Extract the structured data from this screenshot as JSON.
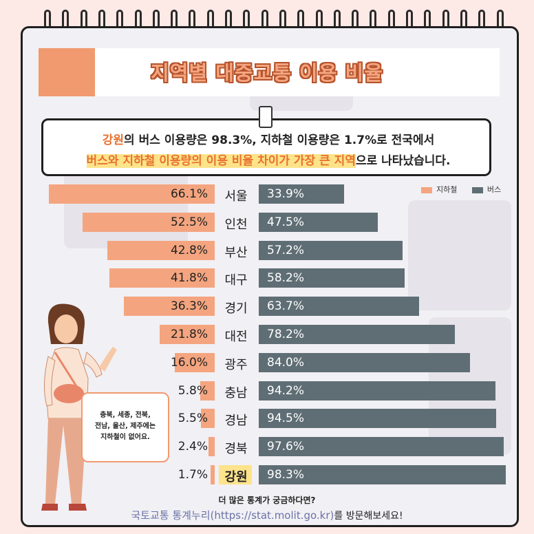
{
  "title": "지역별 대중교통 이용 비율",
  "summary": {
    "line1": {
      "highlight": "강원",
      "rest": "의 버스 이용량은 98.3%, 지하철 이용량은 1.7%로 전국에서"
    },
    "line2": {
      "highlight": "버스와 지하철 이용량의 이용 비율 차이가 가장 큰 지역",
      "rest": "으로 나타났습니다."
    }
  },
  "legend": {
    "subway": "지하철",
    "bus": "버스"
  },
  "colors": {
    "subway": "#f4a57f",
    "bus": "#5f6e75",
    "accent": "#e8712f",
    "highlight": "#fde38a"
  },
  "note": {
    "line1": "충북, 세종, 전북,",
    "line2": "전남, 울산, 제주에는",
    "line3": "지하철이 없어요."
  },
  "footer": {
    "line1": "더 많은 통계가 궁금하다면?",
    "link": "국토교통 통계누리(https://stat.molit.go.kr)",
    "line2_rest": "를 방문해보세요!"
  },
  "chart_data": {
    "type": "bar",
    "orientation": "horizontal-diverging",
    "categories": [
      "서울",
      "인천",
      "부산",
      "대구",
      "경기",
      "대전",
      "광주",
      "충남",
      "경남",
      "경북",
      "강원"
    ],
    "series": [
      {
        "name": "지하철",
        "values": [
          66.1,
          52.5,
          42.8,
          41.8,
          36.3,
          21.8,
          16.0,
          5.8,
          5.5,
          2.4,
          1.7
        ]
      },
      {
        "name": "버스",
        "values": [
          33.9,
          47.5,
          57.2,
          58.2,
          63.7,
          78.2,
          84.0,
          94.2,
          94.5,
          97.6,
          98.3
        ]
      }
    ],
    "labels_subway": [
      "66.1%",
      "52.5%",
      "42.8%",
      "41.8%",
      "36.3%",
      "21.8%",
      "16.0%",
      "5.8%",
      "5.5%",
      "2.4%",
      "1.7%"
    ],
    "labels_bus": [
      "33.9%",
      "47.5%",
      "57.2%",
      "58.2%",
      "63.7%",
      "78.2%",
      "84.0%",
      "94.2%",
      "94.5%",
      "97.6%",
      "98.3%"
    ],
    "highlighted_category": "강원",
    "unit": "%",
    "legend_position": "top-right"
  }
}
